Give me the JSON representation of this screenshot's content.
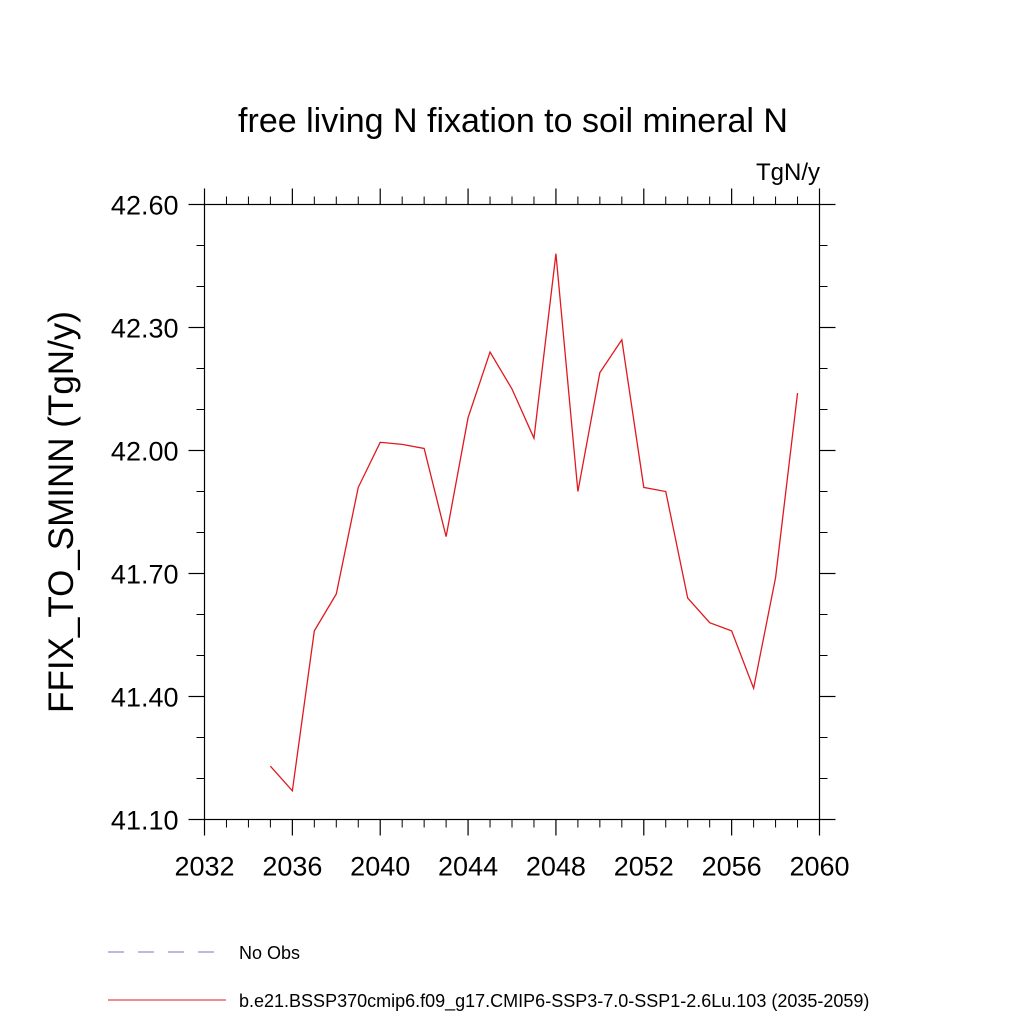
{
  "chart_data": {
    "type": "line",
    "title": "free living N fixation to soil mineral N",
    "units_label": "TgN/y",
    "xlabel": "",
    "ylabel": "FFIX_TO_SMINN  (TgN/y)",
    "xlim": [
      2032,
      2060
    ],
    "ylim": [
      41.1,
      42.6
    ],
    "x_ticks": [
      2032,
      2036,
      2040,
      2044,
      2048,
      2052,
      2056,
      2060
    ],
    "x_tick_labels": [
      "2032",
      "2036",
      "2040",
      "2044",
      "2048",
      "2052",
      "2056",
      "2060"
    ],
    "y_ticks": [
      41.1,
      41.4,
      41.7,
      42.0,
      42.3,
      42.6
    ],
    "y_tick_labels": [
      "41.10",
      "41.40",
      "41.70",
      "42.00",
      "42.30",
      "42.60"
    ],
    "x_minor_step": 1,
    "y_minor_step": 0.1,
    "grid": false,
    "legend_position": "bottom",
    "series": [
      {
        "name": "b.e21.BSSP370cmip6.f09_g17.CMIP6-SSP3-7.0-SSP1-2.6Lu.103 (2035-2059)",
        "color": "#e0191f",
        "style": "solid",
        "x": [
          2035,
          2036,
          2037,
          2038,
          2039,
          2040,
          2041,
          2042,
          2043,
          2044,
          2045,
          2046,
          2047,
          2048,
          2049,
          2050,
          2051,
          2052,
          2053,
          2054,
          2055,
          2056,
          2057,
          2058,
          2059
        ],
        "values": [
          41.23,
          41.17,
          41.56,
          41.65,
          41.91,
          42.02,
          42.015,
          42.005,
          41.79,
          42.08,
          42.24,
          42.15,
          42.03,
          42.48,
          41.9,
          42.19,
          42.27,
          41.91,
          41.9,
          41.64,
          41.58,
          41.56,
          41.42,
          41.69,
          42.14
        ]
      }
    ],
    "legend_entries": [
      {
        "label": "No Obs",
        "color": "#7b72c4",
        "style": "dashed"
      },
      {
        "label": "b.e21.BSSP370cmip6.f09_g17.CMIP6-SSP3-7.0-SSP1-2.6Lu.103 (2035-2059)",
        "color": "#e0191f",
        "style": "solid"
      }
    ]
  }
}
